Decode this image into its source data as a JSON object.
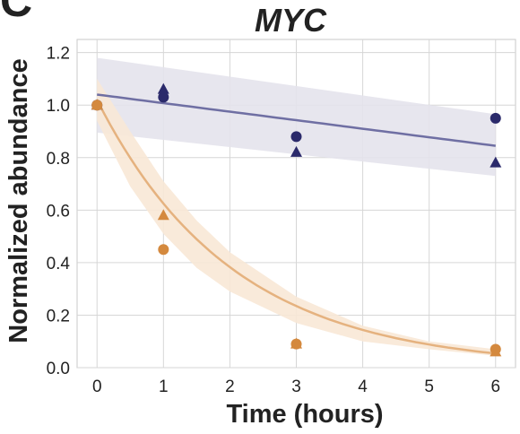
{
  "panel_label": "C",
  "chart_data": {
    "type": "scatter",
    "title": "MYC",
    "xlabel": "Time (hours)",
    "ylabel": "Normalized abundance",
    "xlim": [
      -0.3,
      6.3
    ],
    "ylim": [
      0,
      1.25
    ],
    "xticks": [
      0,
      1,
      2,
      3,
      4,
      5,
      6
    ],
    "xtick_labels": [
      "0",
      "1",
      "2",
      "3",
      "4",
      "5",
      "6"
    ],
    "yticks": [
      0,
      0.2,
      0.4,
      0.6,
      0.8,
      1.0,
      1.2
    ],
    "ytick_labels": [
      "0.0",
      "0.2",
      "0.4",
      "0.6",
      "0.8",
      "1.0",
      "1.2"
    ],
    "grid": true,
    "series": [
      {
        "color": "#2b2a6b",
        "line_color": "#6f6fa3",
        "band_color": "#e4e3ec",
        "circles": {
          "x": [
            0,
            1,
            3,
            6
          ],
          "y": [
            1.0,
            1.03,
            0.88,
            0.95
          ]
        },
        "triangles": {
          "x": [
            0,
            1,
            3,
            6
          ],
          "y": [
            1.0,
            1.06,
            0.82,
            0.78
          ]
        },
        "fit": {
          "kind": "linear",
          "intercept": 1.04,
          "slope": -0.0325
        },
        "band": {
          "x": [
            0,
            6
          ],
          "upper": [
            1.18,
            0.965
          ],
          "lower": [
            0.895,
            0.73
          ]
        }
      },
      {
        "color": "#d4893e",
        "line_color": "#e5b27f",
        "band_color": "#f8e8d6",
        "circles": {
          "x": [
            0,
            1,
            3,
            6
          ],
          "y": [
            1.0,
            0.45,
            0.09,
            0.07
          ]
        },
        "triangles": {
          "x": [
            0,
            1,
            3,
            6
          ],
          "y": [
            1.0,
            0.58,
            0.09,
            0.06
          ]
        },
        "fit": {
          "kind": "exponential",
          "a": 1.02,
          "k": 0.49
        },
        "band": {
          "x": [
            0,
            0.5,
            1,
            1.5,
            2,
            3,
            4,
            5,
            6
          ],
          "upper": [
            1.1,
            0.9,
            0.71,
            0.56,
            0.44,
            0.27,
            0.16,
            0.1,
            0.07
          ],
          "lower": [
            0.94,
            0.69,
            0.51,
            0.38,
            0.29,
            0.17,
            0.1,
            0.07,
            0.045
          ]
        }
      }
    ]
  }
}
